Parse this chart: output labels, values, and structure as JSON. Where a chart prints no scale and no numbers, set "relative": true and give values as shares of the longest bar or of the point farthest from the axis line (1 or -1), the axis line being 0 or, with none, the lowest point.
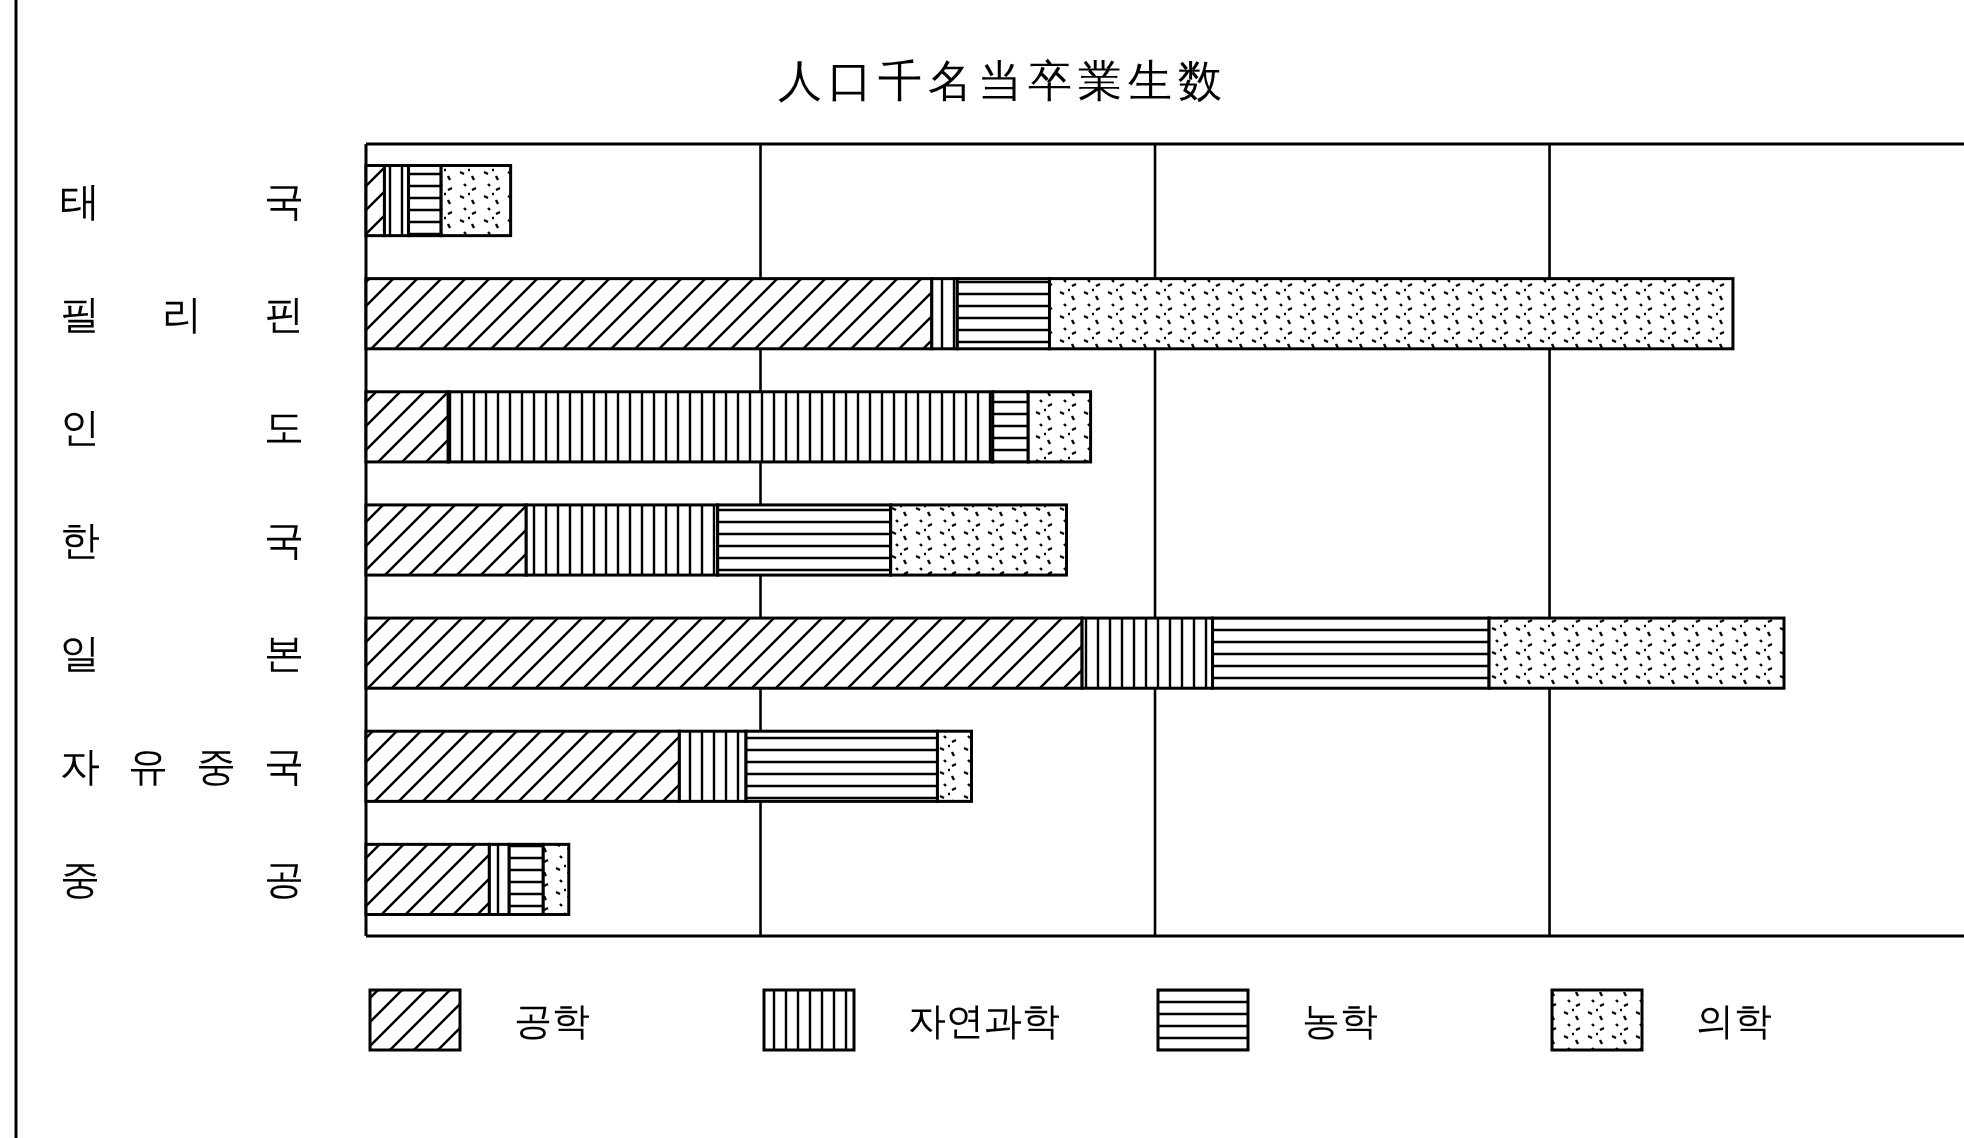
{
  "chart_data": {
    "type": "bar",
    "orientation": "horizontal",
    "stacked": true,
    "relative": true,
    "title": "人口千名当卒業生数",
    "grid": "x",
    "legend": "bottom",
    "categories": [
      "태국",
      "필리핀",
      "인도",
      "한국",
      "일본",
      "자유중국",
      "중공"
    ],
    "series": [
      {
        "name": "공학",
        "color": "#000000",
        "values": [
          0.013,
          0.399,
          0.058,
          0.113,
          0.505,
          0.221,
          0.087
        ]
      },
      {
        "name": "자연과학",
        "color": "#000000",
        "values": [
          0.017,
          0.018,
          0.384,
          0.135,
          0.092,
          0.047,
          0.014
        ]
      },
      {
        "name": "농학",
        "color": "#000000",
        "values": [
          0.023,
          0.065,
          0.025,
          0.122,
          0.195,
          0.135,
          0.024
        ]
      },
      {
        "name": "의학",
        "color": "#000000",
        "values": [
          0.049,
          0.482,
          0.044,
          0.124,
          0.208,
          0.024,
          0.018
        ]
      }
    ]
  }
}
